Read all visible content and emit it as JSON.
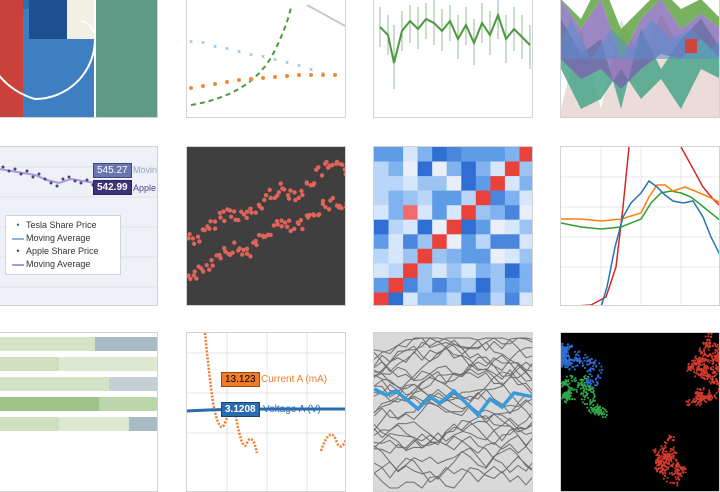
{
  "gallery": {
    "stock_tile": {
      "price_tag_tesla": "545.27",
      "price_tag_apple": "542.99",
      "series_label_tesla": "Moving",
      "series_label_apple": "Apple",
      "legend": [
        {
          "label": "Tesla Share Price",
          "kind": "dot",
          "color": "#3a70b4"
        },
        {
          "label": "Moving Average",
          "kind": "line",
          "color": "#8fb3d9"
        },
        {
          "label": "Apple Share Price",
          "kind": "dot",
          "color": "#4b3f8c"
        },
        {
          "label": "Moving Average",
          "kind": "line",
          "color": "#a99bd6"
        }
      ]
    },
    "current_voltage_tile": {
      "current_value": "13.123",
      "current_label": "Current A (mA)",
      "voltage_value": "3.1208",
      "voltage_label": "Voltage A (V)",
      "current_color": "#f07c2a",
      "voltage_color": "#2b6cb0"
    }
  }
}
